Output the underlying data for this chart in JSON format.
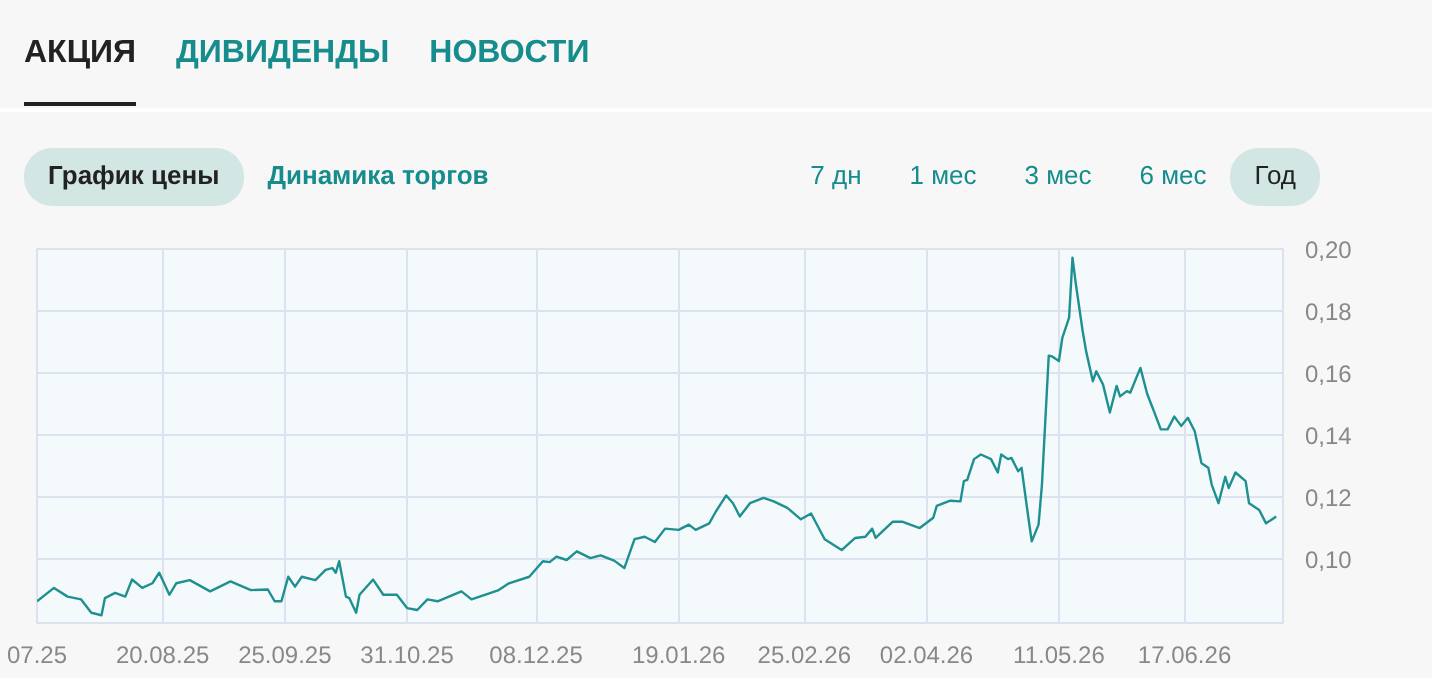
{
  "chart_data": {
    "type": "line",
    "annotations": [
      "АКЦИЯ",
      "ДИВИДЕНДЫ",
      "НОВОСТИ",
      "График цены",
      "Динамика торгов",
      "7 дн",
      "1 мес",
      "3 мес",
      "6 мес",
      "Год"
    ],
    "x": [
      "2025-07-14",
      "2025-07-19",
      "2025-07-23",
      "2025-07-27",
      "2025-07-30",
      "2025-08-02",
      "2025-08-03",
      "2025-08-06",
      "2025-08-09",
      "2025-08-11",
      "2025-08-14",
      "2025-08-17",
      "2025-08-19",
      "2025-08-22",
      "2025-08-24",
      "2025-08-28",
      "2025-09-03",
      "2025-09-09",
      "2025-09-15",
      "2025-09-20",
      "2025-09-22",
      "2025-09-24",
      "2025-09-26",
      "2025-09-28",
      "2025-09-30",
      "2025-10-04",
      "2025-10-07",
      "2025-10-09",
      "2025-10-10",
      "2025-10-11",
      "2025-10-13",
      "2025-10-14",
      "2025-10-16",
      "2025-10-17",
      "2025-10-21",
      "2025-10-24",
      "2025-10-28",
      "2025-10-31",
      "2025-11-03",
      "2025-11-06",
      "2025-11-09",
      "2025-11-16",
      "2025-11-19",
      "2025-11-27",
      "2025-11-30",
      "2025-12-06",
      "2025-12-10",
      "2025-12-12",
      "2025-12-14",
      "2025-12-17",
      "2025-12-20",
      "2025-12-24",
      "2025-12-27",
      "2025-12-31",
      "2026-01-03",
      "2026-01-06",
      "2026-01-09",
      "2026-01-12",
      "2026-01-15",
      "2026-01-19",
      "2026-01-22",
      "2026-01-24",
      "2026-01-28",
      "2026-01-30",
      "2026-02-02",
      "2026-02-04",
      "2026-02-06",
      "2026-02-09",
      "2026-02-13",
      "2026-02-16",
      "2026-02-20",
      "2026-02-24",
      "2026-02-27",
      "2026-03-03",
      "2026-03-08",
      "2026-03-12",
      "2026-03-15",
      "2026-03-17",
      "2026-03-18",
      "2026-03-23",
      "2026-03-26",
      "2026-03-31",
      "2026-04-04",
      "2026-04-05",
      "2026-04-09",
      "2026-04-12",
      "2026-04-13",
      "2026-04-14",
      "2026-04-16",
      "2026-04-18",
      "2026-04-21",
      "2026-04-23",
      "2026-04-24",
      "2026-04-26",
      "2026-04-27",
      "2026-04-29",
      "2026-04-30",
      "2026-05-02",
      "2026-05-03",
      "2026-05-05",
      "2026-05-06",
      "2026-05-08",
      "2026-05-09",
      "2026-05-11",
      "2026-05-12",
      "2026-05-14",
      "2026-05-15",
      "2026-05-16",
      "2026-05-18",
      "2026-05-19",
      "2026-05-21",
      "2026-05-22",
      "2026-05-24",
      "2026-05-26",
      "2026-05-28",
      "2026-05-29",
      "2026-05-31",
      "2026-06-01",
      "2026-06-04",
      "2026-06-06",
      "2026-06-08",
      "2026-06-10",
      "2026-06-12",
      "2026-06-14",
      "2026-06-16",
      "2026-06-18",
      "2026-06-20",
      "2026-06-22",
      "2026-06-24",
      "2026-06-25",
      "2026-06-27",
      "2026-06-29",
      "2026-06-30",
      "2026-07-02",
      "2026-07-05",
      "2026-07-06",
      "2026-07-09",
      "2026-07-11",
      "2026-07-14"
    ],
    "series": [
      {
        "color": "#1f9090",
        "values": [
          0.0865,
          0.0908,
          0.088,
          0.0871,
          0.0828,
          0.082,
          0.0875,
          0.0892,
          0.088,
          0.0935,
          0.0908,
          0.0923,
          0.0957,
          0.0886,
          0.0923,
          0.0933,
          0.0897,
          0.0929,
          0.0901,
          0.0903,
          0.0865,
          0.0865,
          0.0944,
          0.0912,
          0.0944,
          0.0933,
          0.0966,
          0.0972,
          0.0957,
          0.0994,
          0.088,
          0.0875,
          0.0828,
          0.0886,
          0.0935,
          0.0886,
          0.0886,
          0.0843,
          0.0837,
          0.0871,
          0.0865,
          0.0897,
          0.0871,
          0.0901,
          0.0923,
          0.0944,
          0.0994,
          0.0991,
          0.1009,
          0.0998,
          0.1026,
          0.1004,
          0.1013,
          0.0996,
          0.0972,
          0.1065,
          0.1073,
          0.1056,
          0.1099,
          0.1095,
          0.1112,
          0.1095,
          0.1116,
          0.1155,
          0.1206,
          0.1181,
          0.1138,
          0.1181,
          0.1198,
          0.1187,
          0.1166,
          0.1129,
          0.1148,
          0.1065,
          0.103,
          0.1069,
          0.1073,
          0.1099,
          0.1069,
          0.1121,
          0.1121,
          0.1101,
          0.1134,
          0.1172,
          0.1189,
          0.1187,
          0.1252,
          0.1256,
          0.1323,
          0.1338,
          0.1323,
          0.128,
          0.1338,
          0.1323,
          0.1327,
          0.1284,
          0.1295,
          0.1134,
          0.1058,
          0.1112,
          0.1241,
          0.1656,
          0.1654,
          0.1639,
          0.1714,
          0.1779,
          0.1972,
          0.1886,
          0.1735,
          0.1671,
          0.1574,
          0.1606,
          0.1563,
          0.1473,
          0.1559,
          0.1525,
          0.1542,
          0.1537,
          0.1617,
          0.1533,
          0.1477,
          0.1419,
          0.1419,
          0.146,
          0.143,
          0.1456,
          0.1413,
          0.131,
          0.1295,
          0.1241,
          0.1181,
          0.1266,
          0.123,
          0.128,
          0.1252,
          0.1181,
          0.1159,
          0.1116,
          0.1138
        ]
      }
    ],
    "xlim": [
      "2025-07-14",
      "2026-07-16"
    ],
    "xticks": [
      {
        "value": "2025-07-14",
        "label": "07.25"
      },
      {
        "value": "2025-08-20",
        "label": "20.08.25"
      },
      {
        "value": "2025-09-25",
        "label": "25.09.25"
      },
      {
        "value": "2025-10-31",
        "label": "31.10.25"
      },
      {
        "value": "2025-12-08",
        "label": "08.12.25"
      },
      {
        "value": "2026-01-19",
        "label": "19.01.26"
      },
      {
        "value": "2026-02-25",
        "label": "25.02.26"
      },
      {
        "value": "2026-04-02",
        "label": "02.04.26"
      },
      {
        "value": "2026-05-11",
        "label": "11.05.26"
      },
      {
        "value": "2026-06-17",
        "label": "17.06.26"
      }
    ],
    "ylim": [
      0.0795,
      0.2
    ],
    "yticks": [
      {
        "value": 0.1,
        "label": "0,10"
      },
      {
        "value": 0.12,
        "label": "0,12"
      },
      {
        "value": 0.14,
        "label": "0,14"
      },
      {
        "value": 0.16,
        "label": "0,16"
      },
      {
        "value": 0.18,
        "label": "0,18"
      },
      {
        "value": 0.2,
        "label": "0,20"
      }
    ],
    "grid": true,
    "line_style": "solid"
  }
}
